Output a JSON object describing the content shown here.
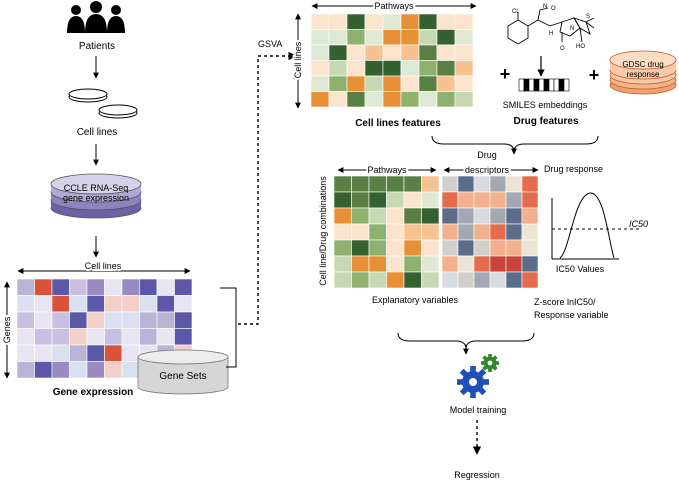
{
  "labels": {
    "patients": "Patients",
    "cell_lines": "Cell lines",
    "ccle_line1": "CCLE RNA-Seq",
    "ccle_line2": "gene expression",
    "cell_lines_axis": "Cell lines",
    "genes_axis": "Genes",
    "gene_expression": "Gene expression",
    "gene_sets": "Gene Sets",
    "gsva": "GSVA",
    "pathways_top": "Pathways",
    "cell_lines_vertical": "Cell lines",
    "cell_lines_features": "Cell lines features",
    "smiles_embeddings": "SMILES embeddings",
    "drug_features": "Drug features",
    "gdsc_line1": "GDSC drug",
    "gdsc_line2": "response",
    "plus": "+",
    "pathways_lower": "Pathways",
    "drug_descriptors_line1": "Drug",
    "drug_descriptors_line2": "descriptors",
    "drug_response": "Drug response",
    "combinations_axis": "Cell line/Drug combinations",
    "explanatory_variables": "Explanatory variables",
    "ic50": "IC50",
    "ic50_values": "IC50 Values",
    "zscore_line1": "Z-score lnIC50/",
    "zscore_line2": "Response variable",
    "model_training": "Model training",
    "regression": "Regression"
  },
  "colors": {
    "gene_expression_palette": [
      "#c9bfe0",
      "#9a8ac4",
      "#5b58a8",
      "#f3cfc8",
      "#d9e0ef",
      "#b9b3d6",
      "#e8e4f2",
      "#d9533a"
    ],
    "pathway_palette": [
      "#5a7f45",
      "#8fb16f",
      "#c7d9b3",
      "#e69138",
      "#f6c28f",
      "#fbe3cc",
      "#dfe8d4",
      "#356030"
    ],
    "descriptor_palette": [
      "#5a6c8a",
      "#a3a8b3",
      "#d0cfcc",
      "#e46c4c",
      "#f2b08f",
      "#d8dbe2",
      "#c8443a",
      "#ede4d6"
    ],
    "gear_blue": "#1f4fb8",
    "gear_green": "#2f8a2a",
    "gdsc_fill": "#f7c9a6"
  }
}
